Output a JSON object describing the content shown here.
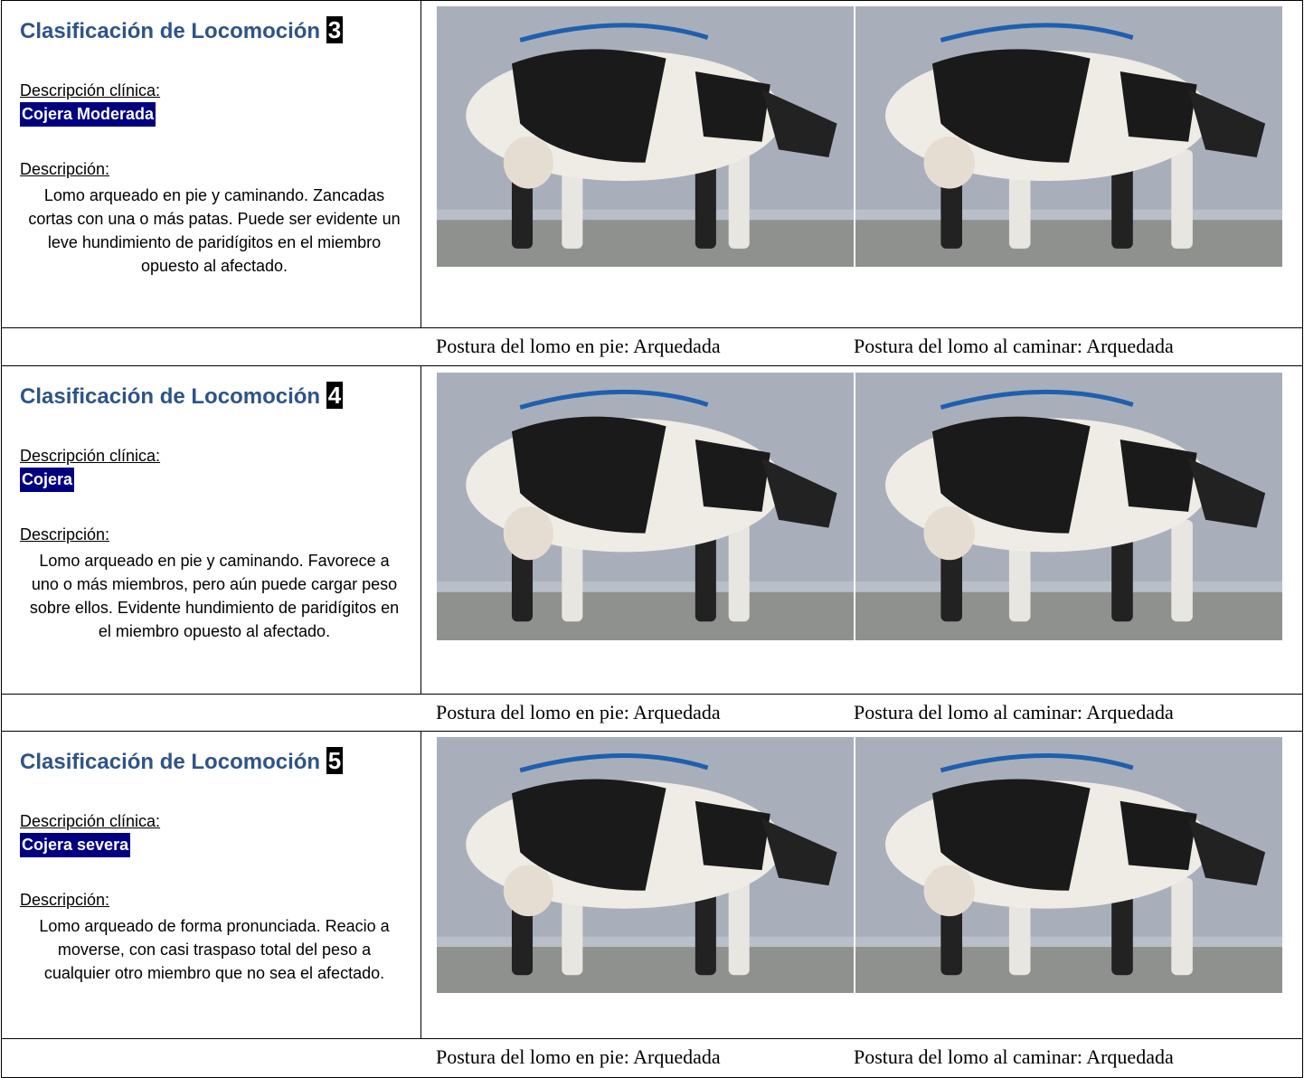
{
  "rows": [
    {
      "title": "Clasificación de Locomoción",
      "score": "3",
      "clinical_label": "Descripción clínica:",
      "severity": "Cojera Moderada",
      "description_label": "Descripción:",
      "description": "Lomo arqueado en pie y caminando. Zancadas cortas con una o más patas. Puede ser evidente un leve hundimiento de paridígitos en el miembro opuesto al afectado.",
      "caption_standing": "Postura del lomo en pie: Arquedada",
      "caption_walking": "Postura del lomo al caminar: Arquedada"
    },
    {
      "title": "Clasificación de Locomoción",
      "score": "4",
      "clinical_label": "Descripción clínica:",
      "severity": "Cojera",
      "description_label": "Descripción:",
      "description": "Lomo arqueado en pie y caminando. Favorece a uno o más miembros, pero aún puede cargar peso sobre ellos. Evidente hundimiento de paridígitos en el miembro opuesto al afectado.",
      "caption_standing": "Postura del lomo en pie: Arquedada",
      "caption_walking": "Postura del lomo al caminar: Arquedada"
    },
    {
      "title": "Clasificación de Locomoción",
      "score": "5",
      "clinical_label": "Descripción clínica:",
      "severity": "Cojera severa",
      "description_label": "Descripción:",
      "description": "Lomo arqueado de forma pronunciada. Reacio a moverse, con casi traspaso total del peso a cualquier otro miembro que no sea el afectado.",
      "caption_standing": "Postura del lomo en pie: Arquedada",
      "caption_walking": "Postura del lomo al caminar: Arquedada"
    }
  ]
}
